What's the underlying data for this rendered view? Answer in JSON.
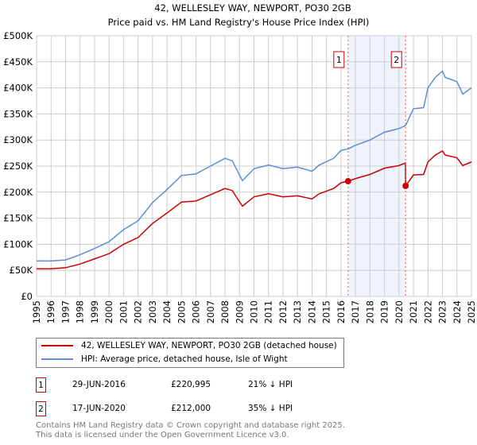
{
  "chart_data": {
    "type": "line",
    "title": "42, WELLESLEY WAY, NEWPORT, PO30 2GB",
    "subtitle": "Price paid vs. HM Land Registry's House Price Index (HPI)",
    "xlim": [
      1995,
      2025
    ],
    "ylim": [
      0,
      500000
    ],
    "x_ticks": [
      "1995",
      "1996",
      "1997",
      "1998",
      "1999",
      "2000",
      "2001",
      "2002",
      "2003",
      "2004",
      "2005",
      "2006",
      "2007",
      "2008",
      "2009",
      "2010",
      "2011",
      "2012",
      "2013",
      "2014",
      "2015",
      "2016",
      "2017",
      "2018",
      "2019",
      "2020",
      "2021",
      "2022",
      "2023",
      "2024",
      "2025"
    ],
    "y_ticks": [
      {
        "v": 0,
        "l": "£0"
      },
      {
        "v": 50000,
        "l": "£50K"
      },
      {
        "v": 100000,
        "l": "£100K"
      },
      {
        "v": 150000,
        "l": "£150K"
      },
      {
        "v": 200000,
        "l": "£200K"
      },
      {
        "v": 250000,
        "l": "£250K"
      },
      {
        "v": 300000,
        "l": "£300K"
      },
      {
        "v": 350000,
        "l": "£350K"
      },
      {
        "v": 400000,
        "l": "£400K"
      },
      {
        "v": 450000,
        "l": "£450K"
      },
      {
        "v": 500000,
        "l": "£500K"
      }
    ],
    "grid": true,
    "series": [
      {
        "name": "42, WELLESLEY WAY, NEWPORT, PO30 2GB (detached house)",
        "color": "#cc0000",
        "points": [
          [
            1995,
            53000
          ],
          [
            1996,
            53000
          ],
          [
            1997,
            55000
          ],
          [
            1998,
            62000
          ],
          [
            1999,
            72000
          ],
          [
            2000,
            82000
          ],
          [
            2001,
            100000
          ],
          [
            2002,
            113000
          ],
          [
            2003,
            140000
          ],
          [
            2004,
            160000
          ],
          [
            2005,
            181000
          ],
          [
            2006,
            183000
          ],
          [
            2007,
            195000
          ],
          [
            2008,
            207000
          ],
          [
            2008.5,
            203000
          ],
          [
            2009.2,
            173000
          ],
          [
            2010,
            191000
          ],
          [
            2011,
            197000
          ],
          [
            2012,
            191000
          ],
          [
            2013,
            193000
          ],
          [
            2014,
            187000
          ],
          [
            2014.5,
            197000
          ],
          [
            2015.5,
            207000
          ],
          [
            2016,
            218000
          ],
          [
            2016.49,
            220995
          ],
          [
            2017,
            226000
          ],
          [
            2018,
            234000
          ],
          [
            2019,
            246000
          ],
          [
            2020,
            251000
          ],
          [
            2020.44,
            256000
          ],
          [
            2020.46,
            212000
          ],
          [
            2021,
            233000
          ],
          [
            2021.7,
            234000
          ],
          [
            2022,
            258000
          ],
          [
            2022.5,
            271000
          ],
          [
            2023,
            279000
          ],
          [
            2023.2,
            271000
          ],
          [
            2024,
            266000
          ],
          [
            2024.4,
            251000
          ],
          [
            2025,
            258000
          ]
        ]
      },
      {
        "name": "HPI: Average price, detached house, Isle of Wight",
        "color": "#5b8fd4",
        "points": [
          [
            1995,
            68000
          ],
          [
            1996,
            68000
          ],
          [
            1997,
            70000
          ],
          [
            1998,
            80000
          ],
          [
            1999,
            92000
          ],
          [
            2000,
            105000
          ],
          [
            2001,
            128000
          ],
          [
            2002,
            145000
          ],
          [
            2003,
            180000
          ],
          [
            2004,
            205000
          ],
          [
            2005,
            232000
          ],
          [
            2006,
            235000
          ],
          [
            2007,
            250000
          ],
          [
            2008,
            265000
          ],
          [
            2008.5,
            260000
          ],
          [
            2009.2,
            222000
          ],
          [
            2010,
            245000
          ],
          [
            2011,
            252000
          ],
          [
            2012,
            245000
          ],
          [
            2013,
            248000
          ],
          [
            2014,
            240000
          ],
          [
            2014.5,
            252000
          ],
          [
            2015.5,
            265000
          ],
          [
            2016,
            280000
          ],
          [
            2016.49,
            283000
          ],
          [
            2017,
            290000
          ],
          [
            2018,
            300000
          ],
          [
            2019,
            315000
          ],
          [
            2020,
            322000
          ],
          [
            2020.46,
            328000
          ],
          [
            2021,
            360000
          ],
          [
            2021.7,
            362000
          ],
          [
            2022,
            400000
          ],
          [
            2022.5,
            420000
          ],
          [
            2023,
            432000
          ],
          [
            2023.2,
            420000
          ],
          [
            2024,
            412000
          ],
          [
            2024.4,
            388000
          ],
          [
            2025,
            400000
          ]
        ]
      }
    ],
    "sales": [
      {
        "id": "1",
        "year": 2016.49,
        "value": 220995,
        "date": "29-JUN-2016",
        "price": "£220,995",
        "hpi": "21% ↓ HPI"
      },
      {
        "id": "2",
        "year": 2020.46,
        "value": 212000,
        "date": "17-JUN-2020",
        "price": "£212,000",
        "hpi": "35% ↓ HPI"
      }
    ]
  },
  "footer": {
    "line1": "Contains HM Land Registry data © Crown copyright and database right 2025.",
    "line2": "This data is licensed under the Open Government Licence v3.0."
  }
}
